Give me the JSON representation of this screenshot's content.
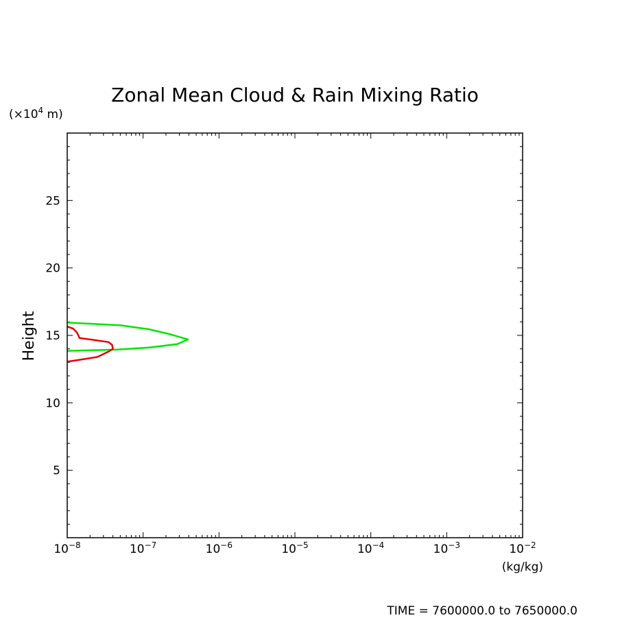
{
  "chart_data": {
    "type": "line",
    "title": "Zonal Mean Cloud & Rain Mixing Ratio",
    "ylabel": "Height",
    "y_unit_prefix": "(×10",
    "y_unit_exp": "4",
    "y_unit_suffix": " m)",
    "x_unit": "(kg/kg)",
    "x_scale": "log",
    "xlim": [
      1e-08,
      0.01
    ],
    "ylim": [
      0,
      30
    ],
    "x_ticks": [
      {
        "base": "10",
        "exp": "−8",
        "value": 1e-08
      },
      {
        "base": "10",
        "exp": "−7",
        "value": 1e-07
      },
      {
        "base": "10",
        "exp": "−6",
        "value": 1e-06
      },
      {
        "base": "10",
        "exp": "−5",
        "value": 1e-05
      },
      {
        "base": "10",
        "exp": "−4",
        "value": 0.0001
      },
      {
        "base": "10",
        "exp": "−3",
        "value": 0.001
      },
      {
        "base": "10",
        "exp": "−2",
        "value": 0.01
      }
    ],
    "y_ticks": [
      {
        "label": "5",
        "value": 5
      },
      {
        "label": "10",
        "value": 10
      },
      {
        "label": "15",
        "value": 15
      },
      {
        "label": "20",
        "value": 20
      },
      {
        "label": "25",
        "value": 25
      }
    ],
    "series": [
      {
        "color": "#00e600",
        "points": [
          {
            "x": 1e-08,
            "y": 15.95
          },
          {
            "x": 5e-08,
            "y": 15.75
          },
          {
            "x": 1.2e-07,
            "y": 15.45
          },
          {
            "x": 2.2e-07,
            "y": 15.1
          },
          {
            "x": 3.9e-07,
            "y": 14.7
          },
          {
            "x": 2.8e-07,
            "y": 14.35
          },
          {
            "x": 1.2e-07,
            "y": 14.1
          },
          {
            "x": 4.5e-08,
            "y": 13.95
          },
          {
            "x": 1e-08,
            "y": 13.85
          }
        ]
      },
      {
        "color": "#e60000",
        "points": [
          {
            "x": 1e-08,
            "y": 15.65
          },
          {
            "x": 1.2e-08,
            "y": 15.5
          },
          {
            "x": 1.35e-08,
            "y": 15.2
          },
          {
            "x": 1.45e-08,
            "y": 14.8
          },
          {
            "x": 2e-08,
            "y": 14.7
          },
          {
            "x": 3.5e-08,
            "y": 14.5
          },
          {
            "x": 3.9e-08,
            "y": 14.3
          },
          {
            "x": 4e-08,
            "y": 14.0
          },
          {
            "x": 3.5e-08,
            "y": 13.8
          },
          {
            "x": 2.5e-08,
            "y": 13.4
          },
          {
            "x": 1.5e-08,
            "y": 13.2
          },
          {
            "x": 1e-08,
            "y": 13.05
          }
        ]
      }
    ]
  },
  "footer": {
    "time_label": "TIME = 7600000.0 to 7650000.0"
  }
}
